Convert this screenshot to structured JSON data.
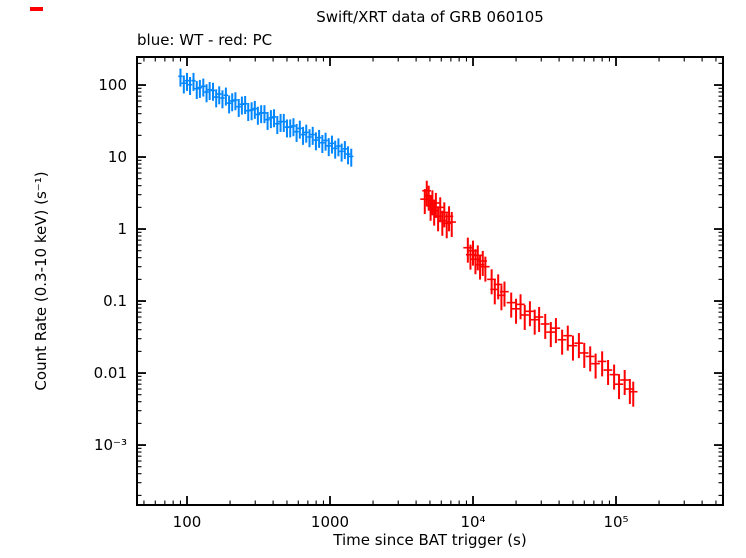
{
  "chart_data": {
    "type": "scatter",
    "title": "Swift/XRT data of GRB 060105",
    "legend_note": "blue: WT - red: PC",
    "xlabel": "Time since BAT trigger (s)",
    "ylabel": "Count Rate (0.3-10 keV) (s⁻¹)",
    "xscale": "log",
    "yscale": "log",
    "xlim": [
      44.7,
      560000
    ],
    "ylim": [
      0.000147,
      245
    ],
    "grid": false,
    "x_ticks": [
      {
        "v": 100,
        "label": "100"
      },
      {
        "v": 1000,
        "label": "1000"
      },
      {
        "v": 10000,
        "label": "10⁴"
      },
      {
        "v": 100000,
        "label": "10⁵"
      }
    ],
    "y_ticks": [
      {
        "v": 0.001,
        "label": "10⁻³"
      },
      {
        "v": 0.01,
        "label": "0.01"
      },
      {
        "v": 0.1,
        "label": "0.1"
      },
      {
        "v": 1,
        "label": "1"
      },
      {
        "v": 10,
        "label": "10"
      },
      {
        "v": 100,
        "label": "100"
      }
    ],
    "series": [
      {
        "name": "WT",
        "color": "#0086ff",
        "rate_err_frac": 0.28,
        "t_bin_frac": 0.035,
        "t": [
          90,
          95,
          100,
          105,
          111,
          117,
          123,
          130,
          137,
          144,
          152,
          160,
          168,
          177,
          187,
          197,
          207,
          218,
          230,
          242,
          255,
          268,
          283,
          298,
          313,
          330,
          348,
          366,
          386,
          406,
          428,
          451,
          475,
          500,
          527,
          555,
          584,
          615,
          648,
          682,
          719,
          757,
          797,
          839,
          884,
          931,
          980,
          1032,
          1087,
          1145,
          1206,
          1270,
          1337,
          1408
        ],
        "rate": [
          132,
          106,
          115,
          101,
          115,
          89,
          92,
          96,
          80,
          86,
          84,
          68,
          75,
          66,
          72,
          56,
          60,
          62,
          50,
          54,
          55,
          44,
          45,
          47,
          39,
          41,
          41,
          33,
          35,
          36,
          29,
          31,
          31,
          26,
          26,
          27,
          22.5,
          25,
          20.5,
          22,
          19,
          20.5,
          17.2,
          18.6,
          15.8,
          17,
          14.3,
          15.5,
          13.2,
          14.2,
          12,
          13,
          11,
          10.2
        ]
      },
      {
        "name": "PC",
        "color": "#ff0000",
        "rate_err_frac": 0.38,
        "t_bin_frac": 0.07,
        "t": [
          4600,
          4750,
          4900,
          5050,
          5200,
          5350,
          5500,
          5700,
          5900,
          6100,
          6300,
          6550,
          6800,
          7100,
          9200,
          9600,
          10000,
          10400,
          10800,
          11200,
          11700,
          12200,
          13500,
          14200,
          15000,
          15800,
          16600,
          18500,
          20000,
          21500,
          23000,
          25000,
          27000,
          29000,
          32000,
          35000,
          38000,
          42000,
          46000,
          50000,
          55000,
          60000,
          66000,
          72000,
          80000,
          88000,
          97000,
          105000,
          115000,
          125000,
          132000
        ],
        "rate": [
          2.6,
          3.4,
          2.9,
          2.1,
          2.5,
          1.8,
          2.3,
          1.5,
          2.0,
          1.3,
          1.7,
          1.2,
          1.5,
          1.25,
          0.55,
          0.44,
          0.5,
          0.38,
          0.43,
          0.32,
          0.36,
          0.3,
          0.2,
          0.145,
          0.17,
          0.12,
          0.135,
          0.095,
          0.078,
          0.09,
          0.064,
          0.072,
          0.055,
          0.06,
          0.048,
          0.037,
          0.042,
          0.029,
          0.033,
          0.024,
          0.026,
          0.019,
          0.017,
          0.0135,
          0.0145,
          0.011,
          0.0095,
          0.007,
          0.008,
          0.006,
          0.0055
        ]
      }
    ],
    "frame_color": "#000000"
  }
}
